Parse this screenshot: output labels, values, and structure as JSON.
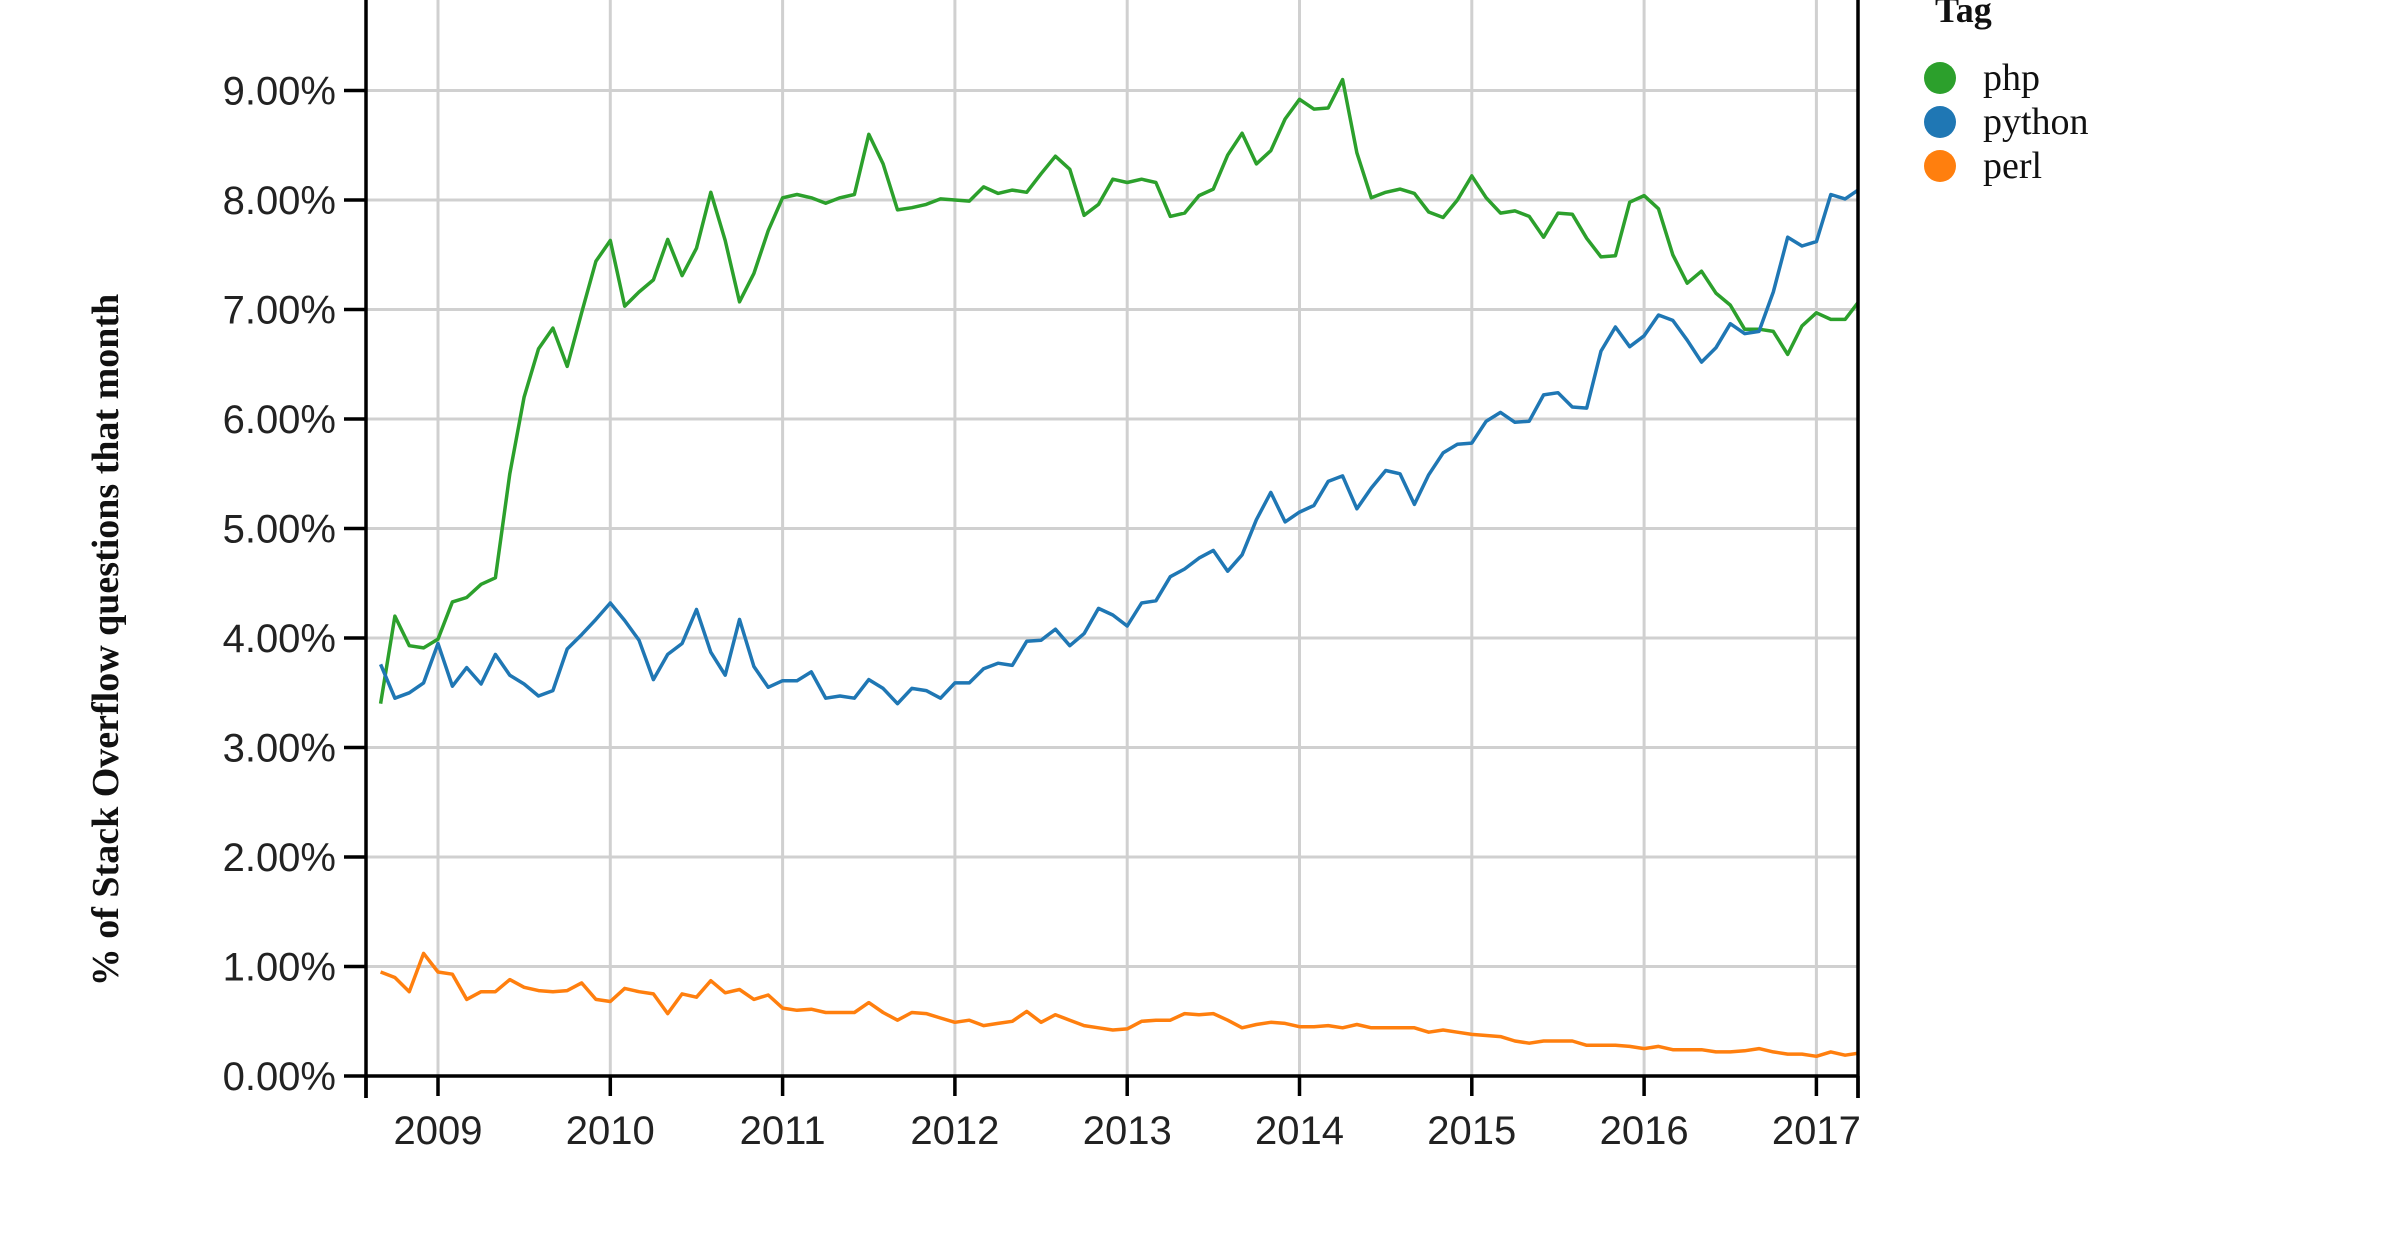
{
  "chart_data": {
    "type": "line",
    "title": "",
    "xlabel": "",
    "ylabel": "% of Stack Overflow questions that month",
    "x_start": "2008-09",
    "x_interval": "month",
    "x_tick_labels": [
      "2009",
      "2010",
      "2011",
      "2012",
      "2013",
      "2014",
      "2015",
      "2016",
      "2017"
    ],
    "y_tick_labels": [
      "0.00%",
      "1.00%",
      "2.00%",
      "3.00%",
      "4.00%",
      "5.00%",
      "6.00%",
      "7.00%",
      "8.00%",
      "9.00%"
    ],
    "ylim": [
      0,
      9.9
    ],
    "xlim": [
      "2008-08",
      "2017-04"
    ],
    "grid": true,
    "legend": {
      "title": "Tag",
      "position": "right"
    },
    "series": [
      {
        "name": "php",
        "color": "#2ca02c",
        "values": [
          3.4,
          4.2,
          3.93,
          3.91,
          3.99,
          4.33,
          4.37,
          4.49,
          4.55,
          5.5,
          6.2,
          6.64,
          6.83,
          6.48,
          6.97,
          7.44,
          7.63,
          7.03,
          7.16,
          7.27,
          7.64,
          7.31,
          7.56,
          8.07,
          7.63,
          7.07,
          7.33,
          7.72,
          8.02,
          8.05,
          8.02,
          7.97,
          8.02,
          8.05,
          8.6,
          8.33,
          7.91,
          7.93,
          7.96,
          8.01,
          8.0,
          7.99,
          8.12,
          8.06,
          8.09,
          8.07,
          8.24,
          8.4,
          8.28,
          7.86,
          7.96,
          8.19,
          8.16,
          8.19,
          8.16,
          7.85,
          7.88,
          8.04,
          8.1,
          8.41,
          8.61,
          8.33,
          8.45,
          8.74,
          8.92,
          8.83,
          8.84,
          9.1,
          8.43,
          8.02,
          8.07,
          8.1,
          8.06,
          7.89,
          7.84,
          8.0,
          8.22,
          8.02,
          7.88,
          7.9,
          7.85,
          7.66,
          7.88,
          7.87,
          7.65,
          7.48,
          7.49,
          7.98,
          8.04,
          7.92,
          7.5,
          7.24,
          7.35,
          7.15,
          7.04,
          6.82,
          6.82,
          6.8,
          6.59,
          6.85,
          6.97,
          6.91,
          6.91,
          7.08
        ]
      },
      {
        "name": "python",
        "color": "#1f77b4",
        "values": [
          3.76,
          3.45,
          3.5,
          3.59,
          3.95,
          3.56,
          3.73,
          3.58,
          3.85,
          3.66,
          3.58,
          3.47,
          3.52,
          3.9,
          4.03,
          4.17,
          4.32,
          4.16,
          3.98,
          3.62,
          3.85,
          3.95,
          4.26,
          3.87,
          3.66,
          4.17,
          3.74,
          3.55,
          3.61,
          3.61,
          3.69,
          3.45,
          3.47,
          3.45,
          3.62,
          3.54,
          3.4,
          3.54,
          3.52,
          3.45,
          3.59,
          3.59,
          3.72,
          3.77,
          3.75,
          3.97,
          3.98,
          4.08,
          3.93,
          4.04,
          4.27,
          4.21,
          4.11,
          4.32,
          4.34,
          4.56,
          4.63,
          4.73,
          4.8,
          4.61,
          4.76,
          5.08,
          5.33,
          5.06,
          5.15,
          5.21,
          5.43,
          5.48,
          5.18,
          5.37,
          5.53,
          5.5,
          5.22,
          5.49,
          5.69,
          5.77,
          5.78,
          5.98,
          6.06,
          5.97,
          5.98,
          6.22,
          6.24,
          6.11,
          6.1,
          6.62,
          6.84,
          6.66,
          6.76,
          6.95,
          6.9,
          6.72,
          6.52,
          6.65,
          6.87,
          6.78,
          6.8,
          7.16,
          7.66,
          7.58,
          7.62,
          8.05,
          8.01,
          8.1
        ]
      },
      {
        "name": "perl",
        "color": "#ff7f0e",
        "values": [
          0.95,
          0.9,
          0.77,
          1.12,
          0.95,
          0.93,
          0.7,
          0.77,
          0.77,
          0.88,
          0.81,
          0.78,
          0.77,
          0.78,
          0.85,
          0.7,
          0.68,
          0.8,
          0.77,
          0.75,
          0.57,
          0.75,
          0.72,
          0.87,
          0.76,
          0.79,
          0.7,
          0.74,
          0.62,
          0.6,
          0.61,
          0.58,
          0.58,
          0.58,
          0.67,
          0.58,
          0.51,
          0.58,
          0.57,
          0.53,
          0.49,
          0.51,
          0.46,
          0.48,
          0.5,
          0.59,
          0.49,
          0.56,
          0.51,
          0.46,
          0.44,
          0.42,
          0.43,
          0.5,
          0.51,
          0.51,
          0.57,
          0.56,
          0.57,
          0.51,
          0.44,
          0.47,
          0.49,
          0.48,
          0.45,
          0.45,
          0.46,
          0.44,
          0.47,
          0.44,
          0.44,
          0.44,
          0.44,
          0.4,
          0.42,
          0.4,
          0.38,
          0.37,
          0.36,
          0.32,
          0.3,
          0.32,
          0.32,
          0.32,
          0.28,
          0.28,
          0.28,
          0.27,
          0.25,
          0.27,
          0.24,
          0.24,
          0.24,
          0.22,
          0.22,
          0.23,
          0.25,
          0.22,
          0.2,
          0.2,
          0.18,
          0.22,
          0.19,
          0.21
        ]
      }
    ]
  }
}
